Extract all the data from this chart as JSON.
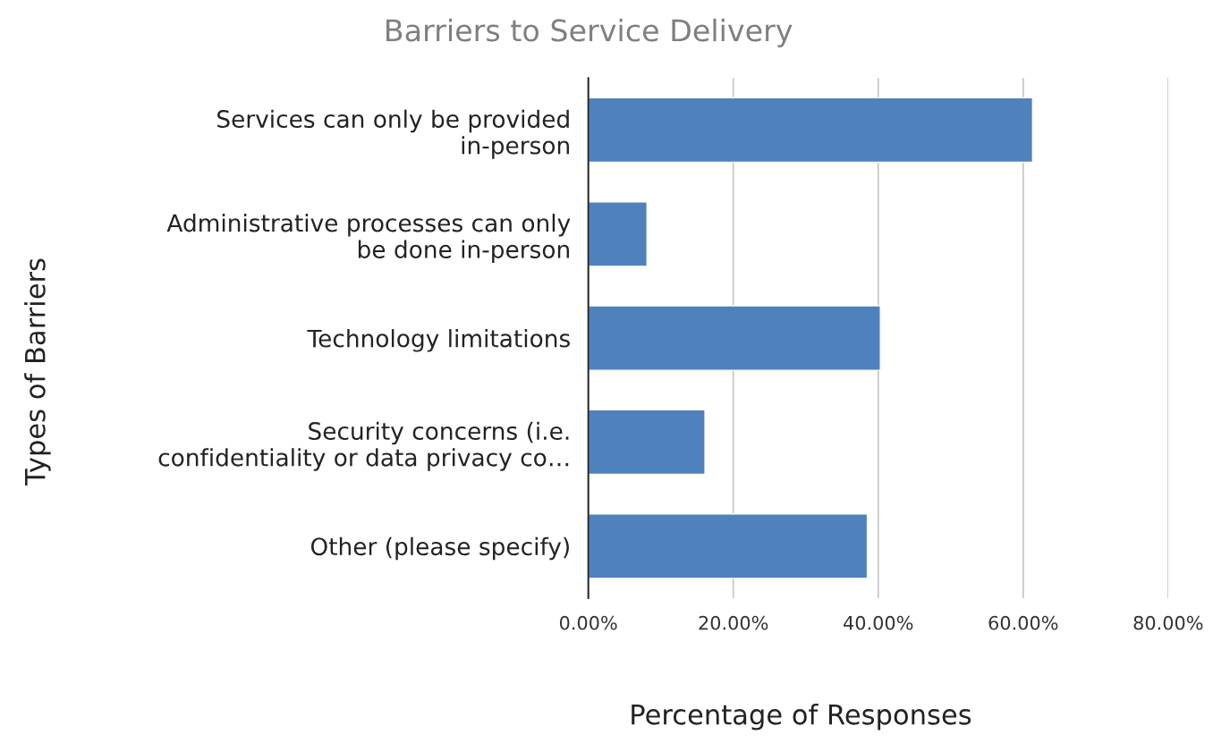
{
  "chart_data": {
    "type": "bar",
    "orientation": "horizontal",
    "title": "Barriers to Service Delivery",
    "xlabel": "Percentage of Responses",
    "ylabel": "Types of Barriers",
    "categories": [
      "Services can only be provided\nin-person",
      "Administrative processes can only\nbe done in-person",
      "Technology limitations",
      "Security concerns (i.e.\nconfidentiality or data privacy co…",
      "Other (please specify)"
    ],
    "values": [
      61.3,
      8.1,
      40.3,
      16.1,
      38.5
    ],
    "color": "#4f81bd",
    "xlim": [
      0,
      80
    ],
    "xticks": [
      {
        "value": 0,
        "label": "0.00%"
      },
      {
        "value": 20,
        "label": "20.00%"
      },
      {
        "value": 40,
        "label": "40.00%"
      },
      {
        "value": 60,
        "label": "60.00%"
      },
      {
        "value": 80,
        "label": "80.00%"
      }
    ],
    "grid": "x"
  }
}
